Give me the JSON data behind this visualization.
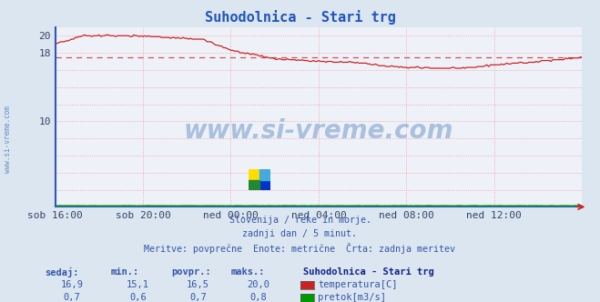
{
  "title": "Suhodolnica - Stari trg",
  "title_color": "#2255bb",
  "background_color": "#dce6f0",
  "plot_bg_color": "#eef2f8",
  "grid_color": "#ee9999",
  "xlim": [
    0,
    288
  ],
  "ylim": [
    0,
    21
  ],
  "yticks": [
    0,
    2,
    4,
    6,
    8,
    10,
    12,
    14,
    16,
    18,
    20
  ],
  "ytick_labels": [
    "",
    "",
    "",
    "",
    "",
    "10",
    "",
    "",
    "",
    "18",
    "20"
  ],
  "xtick_positions": [
    0,
    48,
    96,
    144,
    192,
    240
  ],
  "xtick_labels": [
    "sob 16:00",
    "sob 20:00",
    "ned 00:00",
    "ned 04:00",
    "ned 08:00",
    "ned 12:00"
  ],
  "avg_line_value": 17.5,
  "avg_line_color": "#cc3333",
  "temp_color": "#cc2222",
  "flow_color": "#00aa00",
  "border_color": "#3355bb",
  "watermark_text": "www.si-vreme.com",
  "watermark_color": "#4477bb",
  "left_label_text": "www.si-vreme.com",
  "left_label_color": "#4477bb",
  "footer_lines": [
    "Slovenija / reke in morje.",
    "zadnji dan / 5 minut.",
    "Meritve: povprečne  Enote: metrične  Črta: zadnja meritev"
  ],
  "footer_color": "#3355aa",
  "legend_title": "Suhodolnica - Stari trg",
  "legend_title_color": "#112288",
  "table_headers": [
    "sedaj:",
    "min.:",
    "povpr.:",
    "maks.:"
  ],
  "table_data": [
    [
      "16,9",
      "15,1",
      "16,5",
      "20,0"
    ],
    [
      "0,7",
      "0,6",
      "0,7",
      "0,8"
    ]
  ],
  "table_color": "#3355aa",
  "series_labels": [
    "temperatura[C]",
    "pretok[m3/s]"
  ],
  "series_colors": [
    "#cc2222",
    "#009900"
  ]
}
